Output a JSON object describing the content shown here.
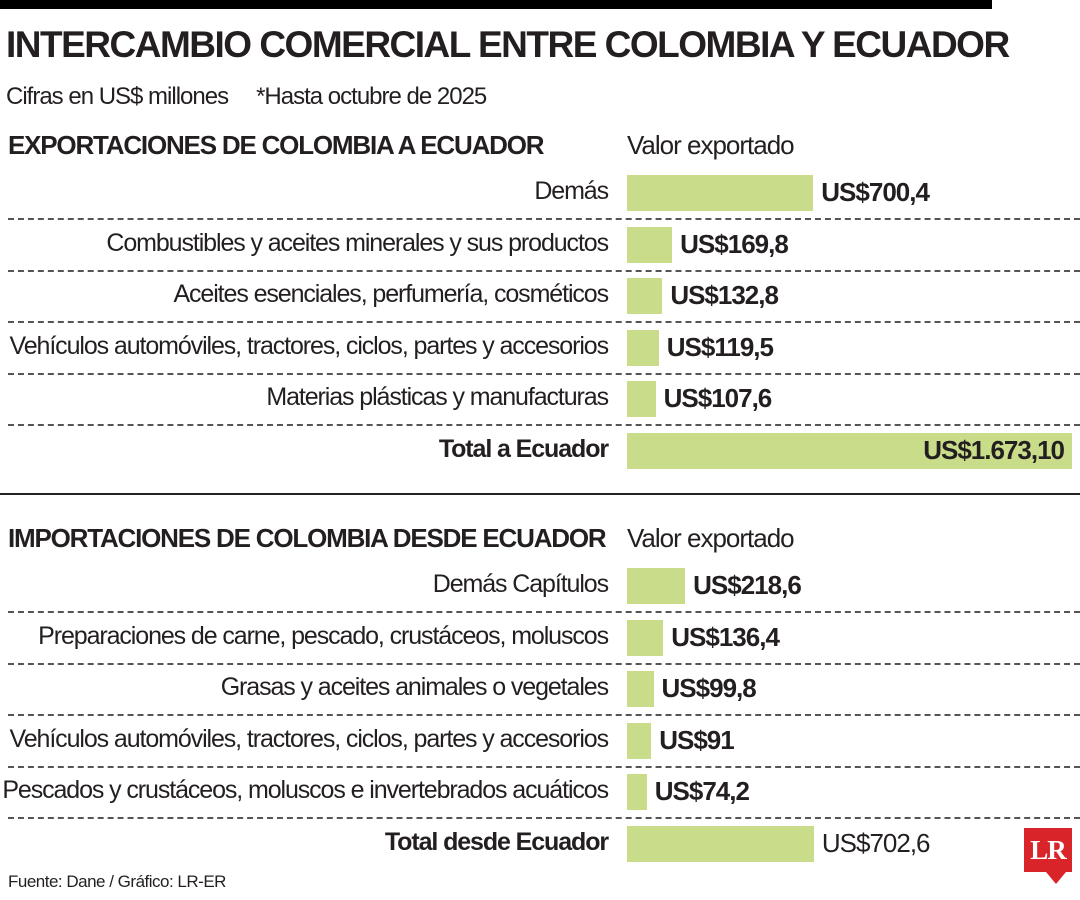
{
  "title": "INTERCAMBIO COMERCIAL ENTRE COLOMBIA Y ECUADOR",
  "subtitle": {
    "units": "Cifras en US$ millones",
    "note": "*Hasta octubre de 2025"
  },
  "colors": {
    "bar": "#c8dc8a",
    "logo": "#d9252a"
  },
  "chart_data": [
    {
      "type": "bar",
      "orientation": "horizontal",
      "title": "EXPORTACIONES DE COLOMBIA A ECUADOR",
      "column_header": "Valor exportado",
      "categories": [
        "Demás",
        "Combustibles y aceites minerales y sus productos",
        "Aceites esenciales, perfumería, cosméticos",
        "Vehículos automóviles, tractores, ciclos, partes y accesorios",
        "Materias plásticas y manufacturas",
        "Total a Ecuador"
      ],
      "values": [
        700.4,
        169.8,
        132.8,
        119.5,
        107.6,
        1673.1
      ],
      "value_labels": [
        "US$700,4",
        "US$169,8",
        "US$132,8",
        "US$119,5",
        "US$107,6",
        "US$1.673,10"
      ]
    },
    {
      "type": "bar",
      "orientation": "horizontal",
      "title": "IMPORTACIONES DE COLOMBIA DESDE ECUADOR",
      "column_header": "Valor exportado",
      "categories": [
        "Demás Capítulos",
        "Preparaciones de carne, pescado, crustáceos, moluscos",
        "Grasas y aceites animales o vegetales",
        "Vehículos automóviles, tractores, ciclos, partes y accesorios",
        "Pescados y crustáceos, moluscos e invertebrados acuáticos",
        "Total desde Ecuador"
      ],
      "values": [
        218.6,
        136.4,
        99.8,
        91,
        74.2,
        702.6
      ],
      "value_labels": [
        "US$218,6",
        "US$136,4",
        "US$99,8",
        "US$91",
        "US$74,2",
        "US$702,6"
      ]
    }
  ],
  "source": "Fuente: Dane / Gráfico: LR-ER",
  "logo": "LR"
}
